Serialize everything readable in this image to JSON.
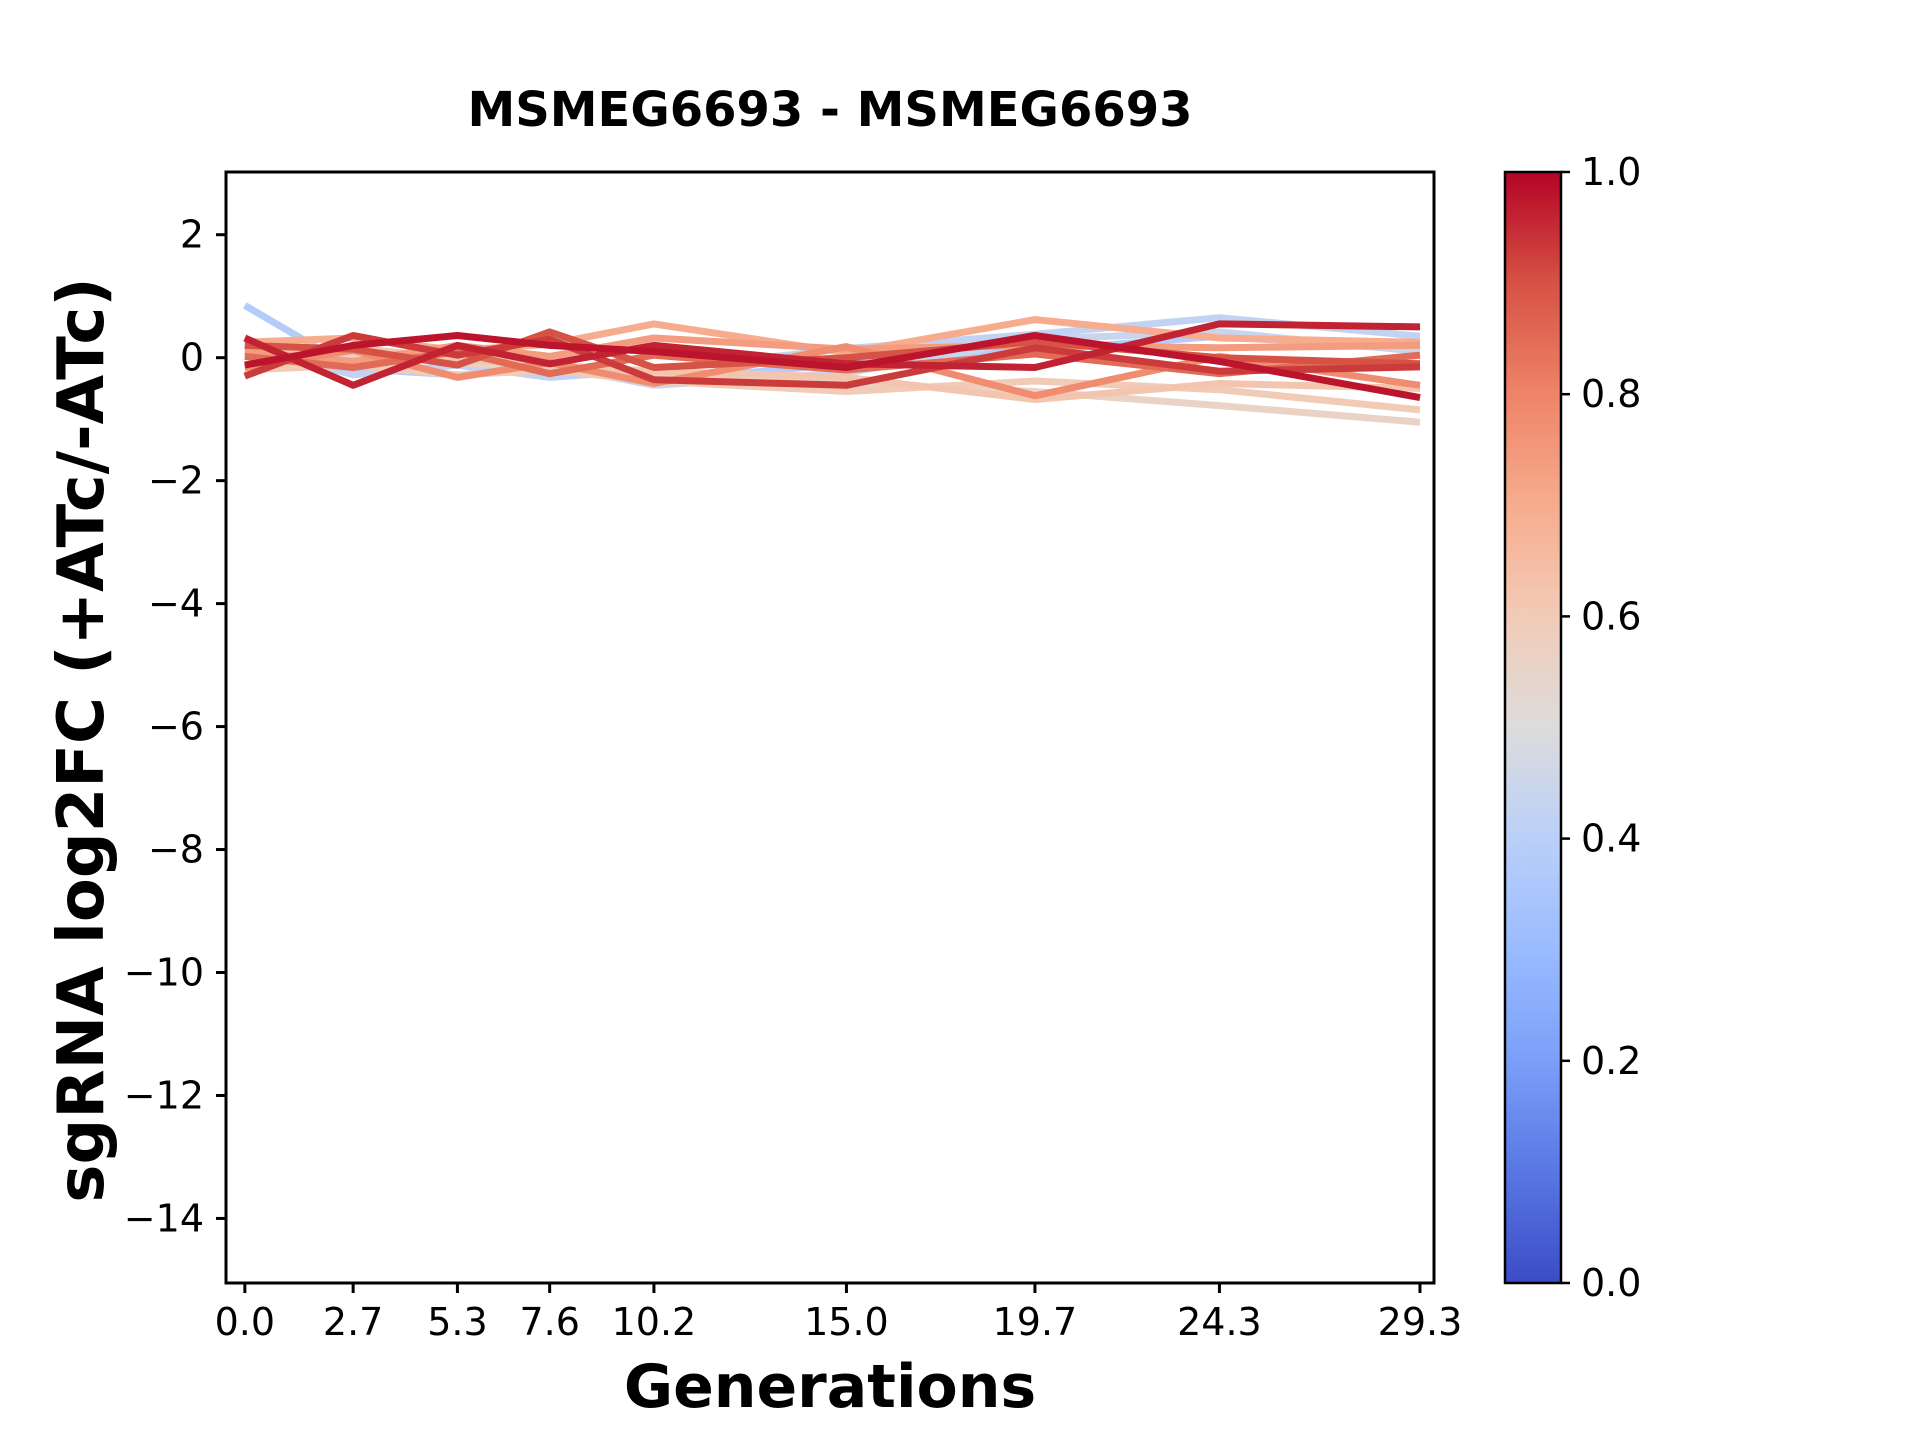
{
  "title": "MSMEG6693 - MSMEG6693",
  "chart_data": {
    "type": "line",
    "title": "MSMEG6693 - MSMEG6693",
    "xlabel": "Generations",
    "ylabel": "sgRNA log2FC (+ATc/-ATc)",
    "xlim": [
      -0.47,
      29.65
    ],
    "ylim": [
      -15.05,
      3.02
    ],
    "grid": false,
    "background": "#ffffff",
    "axis_color": "#000000",
    "x": [
      0.0,
      2.7,
      5.3,
      7.6,
      10.2,
      15.0,
      19.7,
      24.3,
      29.3
    ],
    "x_tick_labels": [
      "0.0",
      "2.7",
      "5.3",
      "7.6",
      "10.2",
      "15.0",
      "19.7",
      "24.3",
      "29.3"
    ],
    "y_ticks": [
      2,
      0,
      -2,
      -4,
      -6,
      -8,
      -10,
      -12,
      -14
    ],
    "y_tick_labels": [
      "2",
      "0",
      "−2",
      "−4",
      "−6",
      "−8",
      "−10",
      "−12",
      "−14"
    ],
    "series": [
      {
        "c": 0.38,
        "y": [
          0.85,
          -0.18,
          -0.28,
          -0.2,
          -0.38,
          -0.1,
          0.12,
          0.35,
          0.12
        ]
      },
      {
        "c": 0.42,
        "y": [
          0.2,
          -0.28,
          -0.12,
          -0.32,
          -0.2,
          0.15,
          0.38,
          0.65,
          0.35
        ]
      },
      {
        "c": 0.44,
        "y": [
          -0.12,
          0.06,
          -0.3,
          -0.12,
          -0.45,
          -0.25,
          0.3,
          0.42,
          0.1
        ]
      },
      {
        "c": 0.56,
        "y": [
          0.14,
          0.04,
          -0.08,
          -0.16,
          -0.26,
          -0.42,
          -0.55,
          -0.78,
          -1.05
        ]
      },
      {
        "c": 0.6,
        "y": [
          -0.2,
          -0.12,
          -0.28,
          -0.2,
          -0.38,
          -0.55,
          -0.38,
          -0.52,
          -0.85
        ]
      },
      {
        "c": 0.62,
        "y": [
          0.06,
          0.16,
          -0.02,
          -0.12,
          -0.22,
          -0.32,
          -0.68,
          -0.42,
          -0.5
        ]
      },
      {
        "c": 0.7,
        "y": [
          0.25,
          0.32,
          0.12,
          0.22,
          0.55,
          0.08,
          0.62,
          0.32,
          0.25
        ]
      },
      {
        "c": 0.74,
        "y": [
          0.1,
          -0.06,
          0.2,
          0.02,
          0.32,
          0.14,
          0.2,
          0.16,
          0.2
        ]
      },
      {
        "c": 0.78,
        "y": [
          -0.16,
          0.12,
          -0.32,
          -0.08,
          -0.42,
          0.18,
          -0.62,
          0.02,
          -0.45
        ]
      },
      {
        "c": 0.85,
        "y": [
          0.02,
          -0.16,
          0.1,
          -0.26,
          0.04,
          -0.2,
          0.06,
          -0.26,
          0.04
        ]
      },
      {
        "c": 0.9,
        "y": [
          0.2,
          0.14,
          -0.12,
          0.42,
          -0.16,
          0.0,
          0.26,
          0.0,
          -0.1
        ]
      },
      {
        "c": 0.93,
        "y": [
          -0.3,
          0.36,
          0.04,
          0.3,
          -0.36,
          -0.45,
          0.16,
          -0.22,
          -0.15
        ]
      },
      {
        "c": 0.96,
        "y": [
          0.32,
          -0.45,
          0.2,
          -0.1,
          0.2,
          -0.1,
          -0.16,
          0.55,
          0.5
        ]
      },
      {
        "c": 0.98,
        "y": [
          -0.12,
          0.2,
          0.36,
          0.2,
          0.1,
          -0.16,
          0.36,
          -0.06,
          -0.65
        ]
      }
    ],
    "colorbar": {
      "min": 0.0,
      "max": 1.0,
      "tick_labels": [
        "1.0",
        "0.8",
        "0.6",
        "0.4",
        "0.2",
        "0.0"
      ],
      "tick_values": [
        1.0,
        0.8,
        0.6,
        0.4,
        0.2,
        0.0
      ],
      "colormap": "coolwarm",
      "stops": [
        {
          "v": 0.0,
          "color": "#3b4cc6"
        },
        {
          "v": 0.1,
          "color": "#5977e3"
        },
        {
          "v": 0.2,
          "color": "#7b9ff9"
        },
        {
          "v": 0.3,
          "color": "#9abbff"
        },
        {
          "v": 0.4,
          "color": "#bad0f8"
        },
        {
          "v": 0.5,
          "color": "#dddcdc"
        },
        {
          "v": 0.6,
          "color": "#f2cbb7"
        },
        {
          "v": 0.7,
          "color": "#f7ac8e"
        },
        {
          "v": 0.8,
          "color": "#ee8468"
        },
        {
          "v": 0.9,
          "color": "#d65244"
        },
        {
          "v": 1.0,
          "color": "#b40426"
        }
      ]
    }
  }
}
